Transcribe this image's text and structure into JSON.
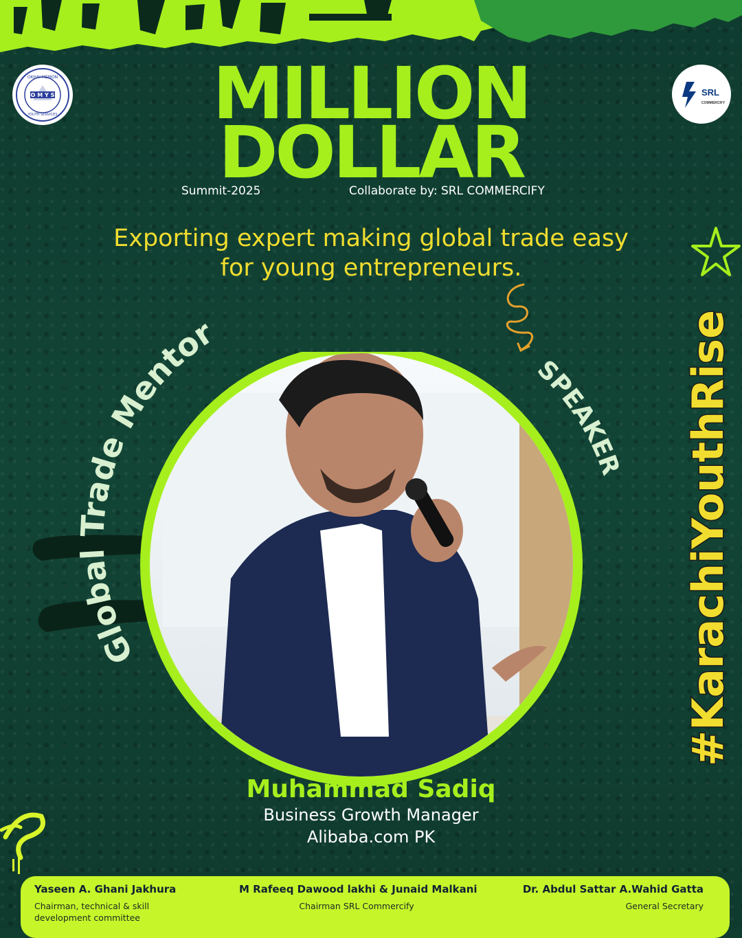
{
  "event": {
    "title_line1": "MILLION",
    "title_line2": "DOLLAR",
    "edition": "Summit-2025",
    "collaborator": "Collaborate by: SRL COMMERCIFY"
  },
  "tagline": {
    "line1": "Exporting expert making global trade easy",
    "line2": "for young entrepreneurs."
  },
  "badges": {
    "arc_left": "Global Trade Mentor",
    "arc_right": "SPEAKER",
    "hashtag": "#KarachiYouthRise"
  },
  "logos": {
    "left_text_top": "OKHAI MEMON",
    "left_text_mid": "O M Y S",
    "left_text_bottom": "YOUTH SERVICES",
    "right_brand": "SRL",
    "right_sub": "COMMERCIFY"
  },
  "speaker": {
    "name": "Muhammad Sadiq",
    "role": "Business Growth Manager",
    "organization": "Alibaba.com PK"
  },
  "footer": {
    "people": [
      {
        "name": "Yaseen A. Ghani Jakhura",
        "title": "Chairman, technical & skill development committee"
      },
      {
        "name": "M Rafeeq Dawood lakhi & Junaid Malkani",
        "title": "Chairman SRL Commercify"
      },
      {
        "name": "Dr. Abdul Sattar A.Wahid Gatta",
        "title": "General Secretary"
      }
    ]
  },
  "colors": {
    "background": "#103d30",
    "accent_lime": "#a6ef1d",
    "tagline_yellow": "#f1dd2f",
    "arrow_orange": "#e6a12b",
    "footer_bg": "#c6f52a"
  }
}
